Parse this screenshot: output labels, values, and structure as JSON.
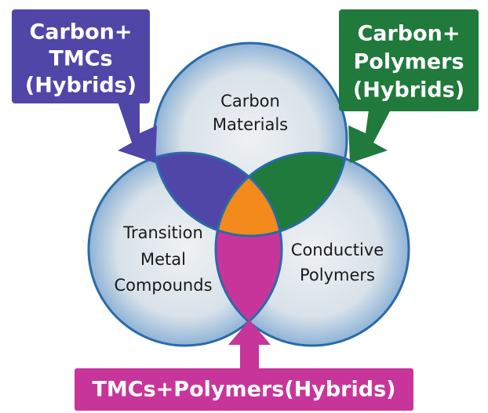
{
  "boxes": [
    {
      "lines": [
        "Carbon+",
        "TMCs",
        "(Hybrids)"
      ]
    },
    {
      "lines": [
        "Carbon+",
        "Polymers",
        "(Hybrids)"
      ]
    },
    {
      "lines": [
        "TMCs+Polymers(Hybrids)"
      ]
    }
  ],
  "circles": [
    {
      "lines": [
        "Carbon",
        "Materials"
      ]
    },
    {
      "lines": [
        "Transition",
        "Metal",
        "Compounds"
      ]
    },
    {
      "lines": [
        "Conductive",
        "Polymers"
      ]
    }
  ]
}
